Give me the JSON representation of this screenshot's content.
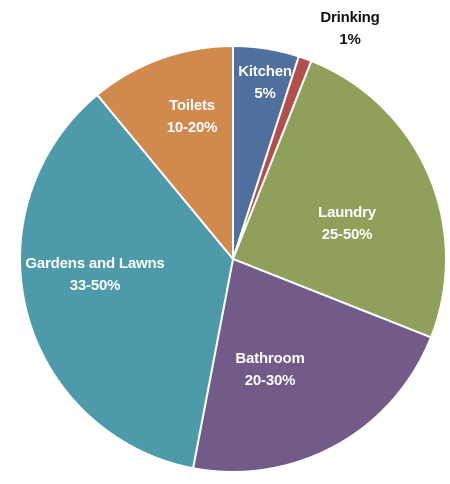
{
  "chart_data": {
    "type": "pie",
    "slices": [
      {
        "label": "Kitchen",
        "value_text": "5%",
        "value": 5,
        "color": "#4F6F9E",
        "label_color": "#ffffff"
      },
      {
        "label": "Drinking",
        "value_text": "1%",
        "value": 1,
        "color": "#B24E4B",
        "label_color": "#111111"
      },
      {
        "label": "Laundry",
        "value_text": "25-50%",
        "value": 25,
        "color": "#8EA05A",
        "label_color": "#ffffff"
      },
      {
        "label": "Bathroom",
        "value_text": "20-30%",
        "value": 22,
        "color": "#735B89",
        "label_color": "#ffffff"
      },
      {
        "label": "Gardens and Lawns",
        "value_text": "33-50%",
        "value": 36,
        "color": "#4D9AAA",
        "label_color": "#ffffff"
      },
      {
        "label": "Toilets",
        "value_text": "10-20%",
        "value": 11,
        "color": "#D18A4E",
        "label_color": "#ffffff"
      }
    ]
  }
}
